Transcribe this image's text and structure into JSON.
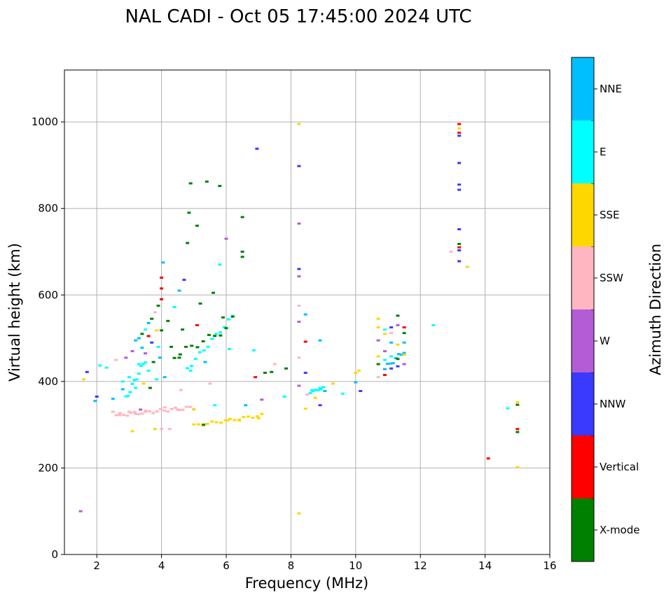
{
  "chart_data": {
    "type": "scatter",
    "title": "NAL CADI - Oct 05 17:45:00 2024 UTC",
    "xlabel": "Frequency (MHz)",
    "ylabel": "Virtual height (km)",
    "xlim": [
      1,
      16
    ],
    "ylim": [
      0,
      1120
    ],
    "xticks": [
      2,
      4,
      6,
      8,
      10,
      12,
      14,
      16
    ],
    "yticks": [
      0,
      200,
      400,
      600,
      800,
      1000
    ],
    "grid": true,
    "colorbar": {
      "label": "Azimuth Direction",
      "categories": [
        {
          "name": "X-mode",
          "color": "#008000"
        },
        {
          "name": "Vertical",
          "color": "#ff0000"
        },
        {
          "name": "NNW",
          "color": "#3a3aff"
        },
        {
          "name": "W",
          "color": "#b35cd6"
        },
        {
          "name": "SSW",
          "color": "#ffb6c1"
        },
        {
          "name": "SSE",
          "color": "#ffd700"
        },
        {
          "name": "E",
          "color": "#00ffff"
        },
        {
          "name": "NNE",
          "color": "#00bfff"
        }
      ]
    },
    "points": [
      {
        "f": 1.5,
        "h": 100,
        "d": "W"
      },
      {
        "f": 1.6,
        "h": 405,
        "d": "SSE"
      },
      {
        "f": 1.7,
        "h": 422,
        "d": "NNW"
      },
      {
        "f": 1.95,
        "h": 355,
        "d": "NNE"
      },
      {
        "f": 2.0,
        "h": 365,
        "d": "NNW"
      },
      {
        "f": 2.1,
        "h": 437,
        "d": "E"
      },
      {
        "f": 2.3,
        "h": 432,
        "d": "E"
      },
      {
        "f": 2.5,
        "h": 360,
        "d": "NNE"
      },
      {
        "f": 2.5,
        "h": 330,
        "d": "SSW"
      },
      {
        "f": 2.6,
        "h": 450,
        "d": "SSW"
      },
      {
        "f": 2.7,
        "h": 322,
        "d": "SSW"
      },
      {
        "f": 2.8,
        "h": 400,
        "d": "E"
      },
      {
        "f": 2.8,
        "h": 382,
        "d": "NNE"
      },
      {
        "f": 2.9,
        "h": 455,
        "d": "W"
      },
      {
        "f": 3.0,
        "h": 330,
        "d": "SSW"
      },
      {
        "f": 3.0,
        "h": 410,
        "d": "E"
      },
      {
        "f": 3.1,
        "h": 470,
        "d": "W"
      },
      {
        "f": 3.1,
        "h": 285,
        "d": "SSE"
      },
      {
        "f": 3.2,
        "h": 495,
        "d": "NNE"
      },
      {
        "f": 3.2,
        "h": 385,
        "d": "E"
      },
      {
        "f": 3.2,
        "h": 325,
        "d": "SSW"
      },
      {
        "f": 3.3,
        "h": 500,
        "d": "NNE"
      },
      {
        "f": 3.3,
        "h": 440,
        "d": "E"
      },
      {
        "f": 3.35,
        "h": 335,
        "d": "W"
      },
      {
        "f": 3.4,
        "h": 510,
        "d": "X-mode"
      },
      {
        "f": 3.4,
        "h": 478,
        "d": "NNE"
      },
      {
        "f": 3.45,
        "h": 395,
        "d": "SSE"
      },
      {
        "f": 3.5,
        "h": 520,
        "d": "E"
      },
      {
        "f": 3.5,
        "h": 465,
        "d": "W"
      },
      {
        "f": 3.5,
        "h": 330,
        "d": "SSW"
      },
      {
        "f": 3.6,
        "h": 535,
        "d": "NNE"
      },
      {
        "f": 3.6,
        "h": 505,
        "d": "Vertical"
      },
      {
        "f": 3.6,
        "h": 425,
        "d": "E"
      },
      {
        "f": 3.65,
        "h": 385,
        "d": "X-mode"
      },
      {
        "f": 3.7,
        "h": 545,
        "d": "X-mode"
      },
      {
        "f": 3.7,
        "h": 490,
        "d": "NNW"
      },
      {
        "f": 3.75,
        "h": 445,
        "d": "X-mode"
      },
      {
        "f": 3.8,
        "h": 560,
        "d": "SSW"
      },
      {
        "f": 3.8,
        "h": 290,
        "d": "SSE"
      },
      {
        "f": 3.85,
        "h": 518,
        "d": "SSE"
      },
      {
        "f": 3.85,
        "h": 405,
        "d": "E"
      },
      {
        "f": 3.9,
        "h": 575,
        "d": "X-mode"
      },
      {
        "f": 3.9,
        "h": 480,
        "d": "E"
      },
      {
        "f": 3.95,
        "h": 455,
        "d": "NNE"
      },
      {
        "f": 4.0,
        "h": 640,
        "d": "Vertical"
      },
      {
        "f": 4.0,
        "h": 615,
        "d": "Vertical"
      },
      {
        "f": 4.0,
        "h": 590,
        "d": "Vertical"
      },
      {
        "f": 4.0,
        "h": 518,
        "d": "X-mode"
      },
      {
        "f": 4.0,
        "h": 290,
        "d": "SSW"
      },
      {
        "f": 4.05,
        "h": 675,
        "d": "NNE"
      },
      {
        "f": 4.1,
        "h": 410,
        "d": "NNE"
      },
      {
        "f": 4.1,
        "h": 340,
        "d": "SSW"
      },
      {
        "f": 4.2,
        "h": 540,
        "d": "X-mode"
      },
      {
        "f": 4.25,
        "h": 290,
        "d": "SSW"
      },
      {
        "f": 4.3,
        "h": 480,
        "d": "X-mode"
      },
      {
        "f": 4.4,
        "h": 572,
        "d": "E"
      },
      {
        "f": 4.5,
        "h": 335,
        "d": "SSW"
      },
      {
        "f": 4.55,
        "h": 610,
        "d": "NNE"
      },
      {
        "f": 4.55,
        "h": 455,
        "d": "X-mode"
      },
      {
        "f": 4.6,
        "h": 380,
        "d": "SSW"
      },
      {
        "f": 4.65,
        "h": 520,
        "d": "X-mode"
      },
      {
        "f": 4.7,
        "h": 635,
        "d": "NNW"
      },
      {
        "f": 4.8,
        "h": 720,
        "d": "X-mode"
      },
      {
        "f": 4.85,
        "h": 790,
        "d": "X-mode"
      },
      {
        "f": 4.9,
        "h": 858,
        "d": "X-mode"
      },
      {
        "f": 4.9,
        "h": 425,
        "d": "E"
      },
      {
        "f": 5.0,
        "h": 335,
        "d": "SSE"
      },
      {
        "f": 5.1,
        "h": 760,
        "d": "X-mode"
      },
      {
        "f": 5.1,
        "h": 530,
        "d": "Vertical"
      },
      {
        "f": 5.2,
        "h": 580,
        "d": "X-mode"
      },
      {
        "f": 5.3,
        "h": 300,
        "d": "X-mode"
      },
      {
        "f": 5.35,
        "h": 445,
        "d": "NNE"
      },
      {
        "f": 5.4,
        "h": 862,
        "d": "X-mode"
      },
      {
        "f": 5.5,
        "h": 395,
        "d": "SSW"
      },
      {
        "f": 5.6,
        "h": 605,
        "d": "X-mode"
      },
      {
        "f": 5.65,
        "h": 345,
        "d": "E"
      },
      {
        "f": 5.8,
        "h": 852,
        "d": "X-mode"
      },
      {
        "f": 5.8,
        "h": 670,
        "d": "E"
      },
      {
        "f": 5.9,
        "h": 548,
        "d": "X-mode"
      },
      {
        "f": 6.0,
        "h": 730,
        "d": "W"
      },
      {
        "f": 6.05,
        "h": 310,
        "d": "SSE"
      },
      {
        "f": 6.1,
        "h": 475,
        "d": "E"
      },
      {
        "f": 6.2,
        "h": 550,
        "d": "X-mode"
      },
      {
        "f": 6.4,
        "h": 310,
        "d": "SSE"
      },
      {
        "f": 6.5,
        "h": 780,
        "d": "X-mode"
      },
      {
        "f": 6.5,
        "h": 700,
        "d": "X-mode"
      },
      {
        "f": 6.5,
        "h": 688,
        "d": "X-mode"
      },
      {
        "f": 6.6,
        "h": 345,
        "d": "NNE"
      },
      {
        "f": 6.85,
        "h": 472,
        "d": "E"
      },
      {
        "f": 6.9,
        "h": 410,
        "d": "Vertical"
      },
      {
        "f": 6.95,
        "h": 938,
        "d": "NNW"
      },
      {
        "f": 7.0,
        "h": 315,
        "d": "SSE"
      },
      {
        "f": 7.1,
        "h": 358,
        "d": "W"
      },
      {
        "f": 7.2,
        "h": 420,
        "d": "X-mode"
      },
      {
        "f": 7.4,
        "h": 422,
        "d": "X-mode"
      },
      {
        "f": 7.5,
        "h": 440,
        "d": "SSW"
      },
      {
        "f": 7.8,
        "h": 365,
        "d": "E"
      },
      {
        "f": 7.85,
        "h": 430,
        "d": "X-mode"
      },
      {
        "f": 8.25,
        "h": 995,
        "d": "SSE"
      },
      {
        "f": 8.25,
        "h": 898,
        "d": "NNW"
      },
      {
        "f": 8.25,
        "h": 765,
        "d": "W"
      },
      {
        "f": 8.25,
        "h": 660,
        "d": "NNW"
      },
      {
        "f": 8.25,
        "h": 643,
        "d": "W"
      },
      {
        "f": 8.25,
        "h": 575,
        "d": "SSW"
      },
      {
        "f": 8.25,
        "h": 538,
        "d": "W"
      },
      {
        "f": 8.25,
        "h": 455,
        "d": "SSW"
      },
      {
        "f": 8.25,
        "h": 390,
        "d": "W"
      },
      {
        "f": 8.25,
        "h": 95,
        "d": "SSE"
      },
      {
        "f": 8.45,
        "h": 555,
        "d": "NNE"
      },
      {
        "f": 8.45,
        "h": 492,
        "d": "Vertical"
      },
      {
        "f": 8.45,
        "h": 420,
        "d": "NNW"
      },
      {
        "f": 8.45,
        "h": 337,
        "d": "SSE"
      },
      {
        "f": 8.5,
        "h": 370,
        "d": "SSW"
      },
      {
        "f": 8.65,
        "h": 380,
        "d": "E"
      },
      {
        "f": 8.75,
        "h": 362,
        "d": "SSE"
      },
      {
        "f": 8.9,
        "h": 495,
        "d": "NNE"
      },
      {
        "f": 8.9,
        "h": 385,
        "d": "E"
      },
      {
        "f": 8.9,
        "h": 345,
        "d": "NNW"
      },
      {
        "f": 9.05,
        "h": 378,
        "d": "NNE"
      },
      {
        "f": 9.3,
        "h": 395,
        "d": "SSE"
      },
      {
        "f": 9.6,
        "h": 372,
        "d": "E"
      },
      {
        "f": 10.0,
        "h": 420,
        "d": "SSE"
      },
      {
        "f": 10.0,
        "h": 398,
        "d": "NNE"
      },
      {
        "f": 10.1,
        "h": 425,
        "d": "SSE"
      },
      {
        "f": 10.15,
        "h": 378,
        "d": "NNW"
      },
      {
        "f": 10.7,
        "h": 545,
        "d": "SSE"
      },
      {
        "f": 10.7,
        "h": 525,
        "d": "SSE"
      },
      {
        "f": 10.7,
        "h": 495,
        "d": "W"
      },
      {
        "f": 10.7,
        "h": 458,
        "d": "SSE"
      },
      {
        "f": 10.7,
        "h": 440,
        "d": "X-mode"
      },
      {
        "f": 10.7,
        "h": 410,
        "d": "SSW"
      },
      {
        "f": 10.9,
        "h": 520,
        "d": "E"
      },
      {
        "f": 10.9,
        "h": 510,
        "d": "SSE"
      },
      {
        "f": 10.9,
        "h": 470,
        "d": "W"
      },
      {
        "f": 10.9,
        "h": 450,
        "d": "E"
      },
      {
        "f": 10.9,
        "h": 415,
        "d": "Vertical"
      },
      {
        "f": 11.1,
        "h": 525,
        "d": "NNW"
      },
      {
        "f": 11.1,
        "h": 512,
        "d": "SSW"
      },
      {
        "f": 11.1,
        "h": 490,
        "d": "NNE"
      },
      {
        "f": 11.1,
        "h": 458,
        "d": "E"
      },
      {
        "f": 11.1,
        "h": 430,
        "d": "NNW"
      },
      {
        "f": 11.3,
        "h": 552,
        "d": "X-mode"
      },
      {
        "f": 11.3,
        "h": 530,
        "d": "W"
      },
      {
        "f": 11.3,
        "h": 485,
        "d": "SSE"
      },
      {
        "f": 11.3,
        "h": 452,
        "d": "X-mode"
      },
      {
        "f": 11.3,
        "h": 435,
        "d": "NNW"
      },
      {
        "f": 11.5,
        "h": 525,
        "d": "Vertical"
      },
      {
        "f": 11.5,
        "h": 512,
        "d": "X-mode"
      },
      {
        "f": 11.5,
        "h": 490,
        "d": "NNE"
      },
      {
        "f": 11.5,
        "h": 462,
        "d": "SSE"
      },
      {
        "f": 11.5,
        "h": 440,
        "d": "W"
      },
      {
        "f": 12.4,
        "h": 530,
        "d": "E"
      },
      {
        "f": 12.95,
        "h": 700,
        "d": "SSW"
      },
      {
        "f": 13.2,
        "h": 995,
        "d": "Vertical"
      },
      {
        "f": 13.2,
        "h": 985,
        "d": "SSE"
      },
      {
        "f": 13.2,
        "h": 975,
        "d": "Vertical"
      },
      {
        "f": 13.2,
        "h": 968,
        "d": "NNW"
      },
      {
        "f": 13.2,
        "h": 905,
        "d": "NNW"
      },
      {
        "f": 13.2,
        "h": 855,
        "d": "NNW"
      },
      {
        "f": 13.2,
        "h": 843,
        "d": "NNW"
      },
      {
        "f": 13.2,
        "h": 752,
        "d": "NNW"
      },
      {
        "f": 13.2,
        "h": 718,
        "d": "X-mode"
      },
      {
        "f": 13.2,
        "h": 710,
        "d": "Vertical"
      },
      {
        "f": 13.2,
        "h": 703,
        "d": "NNW"
      },
      {
        "f": 13.2,
        "h": 678,
        "d": "NNW"
      },
      {
        "f": 13.45,
        "h": 665,
        "d": "SSE"
      },
      {
        "f": 14.1,
        "h": 222,
        "d": "Vertical"
      },
      {
        "f": 14.7,
        "h": 338,
        "d": "E"
      },
      {
        "f": 15.0,
        "h": 352,
        "d": "SSE"
      },
      {
        "f": 15.0,
        "h": 346,
        "d": "X-mode"
      },
      {
        "f": 15.0,
        "h": 290,
        "d": "Vertical"
      },
      {
        "f": 15.0,
        "h": 283,
        "d": "X-mode"
      },
      {
        "f": 15.0,
        "h": 202,
        "d": "SSE"
      }
    ],
    "traces": [
      {
        "d": "SSW",
        "from": [
          2.6,
          322
        ],
        "to": [
          5.0,
          340
        ],
        "n": 22,
        "wobble": 8
      },
      {
        "d": "SSE",
        "from": [
          5.0,
          298
        ],
        "to": [
          7.1,
          322
        ],
        "n": 16,
        "wobble": 6
      },
      {
        "d": "E",
        "from": [
          2.9,
          360
        ],
        "to": [
          3.5,
          450
        ],
        "n": 10,
        "wobble": 12
      },
      {
        "d": "E",
        "from": [
          4.8,
          430
        ],
        "to": [
          6.2,
          550
        ],
        "n": 12,
        "wobble": 10
      },
      {
        "d": "X-mode",
        "from": [
          4.4,
          460
        ],
        "to": [
          6.0,
          520
        ],
        "n": 10,
        "wobble": 15
      },
      {
        "d": "E",
        "from": [
          8.6,
          375
        ],
        "to": [
          9.0,
          385
        ],
        "n": 6,
        "wobble": 4
      },
      {
        "d": "NNE",
        "from": [
          10.9,
          430
        ],
        "to": [
          11.5,
          470
        ],
        "n": 8,
        "wobble": 10
      }
    ]
  }
}
